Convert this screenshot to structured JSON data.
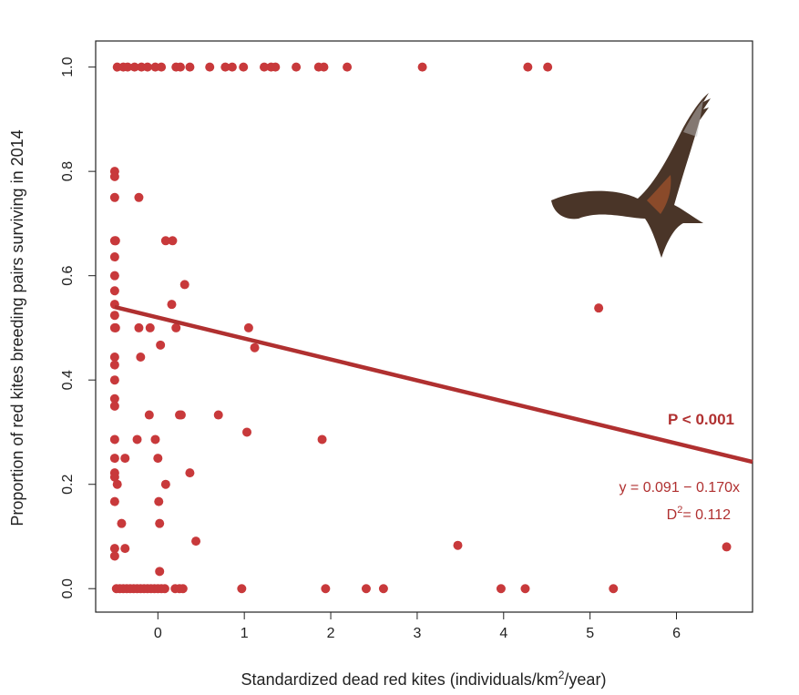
{
  "chart_data": {
    "type": "scatter",
    "title": "",
    "xlabel": "Standardized dead red kites (individuals/km²/year)",
    "xlabel_parts": [
      "Standardized dead red kites (individuals/km",
      "2",
      "/year)"
    ],
    "ylabel": "Proportion of red kites breeding pairs surviving in 2014",
    "xlim": [
      -0.72,
      6.88
    ],
    "ylim": [
      -0.045,
      1.05
    ],
    "xticks": [
      "0",
      "1",
      "2",
      "3",
      "4",
      "5",
      "6"
    ],
    "xtick_values": [
      0,
      1,
      2,
      3,
      4,
      5,
      6
    ],
    "yticks": [
      "0.0",
      "0.2",
      "0.4",
      "0.6",
      "0.8",
      "1.0"
    ],
    "ytick_values": [
      0,
      0.2,
      0.4,
      0.6,
      0.8,
      1.0
    ],
    "grid": false,
    "point_color": "#c8393b",
    "line_color": "#b03030",
    "fit_line": {
      "x": [
        -0.5,
        6.88
      ],
      "y": [
        0.54,
        0.243
      ]
    },
    "annotations": {
      "p_value": "P < 0.001",
      "equation": "y = 0.091 − 0.170x",
      "d2_label": "D",
      "d2_sup": "2",
      "d2_value": "= 0.112"
    },
    "points": [
      [
        -0.47,
        1
      ],
      [
        -0.4,
        1
      ],
      [
        -0.35,
        1
      ],
      [
        -0.27,
        1
      ],
      [
        -0.19,
        1
      ],
      [
        -0.12,
        1
      ],
      [
        -0.03,
        1
      ],
      [
        0.04,
        1
      ],
      [
        0.21,
        1
      ],
      [
        0.26,
        1
      ],
      [
        0.37,
        1
      ],
      [
        0.6,
        1
      ],
      [
        0.78,
        1
      ],
      [
        0.86,
        1
      ],
      [
        0.99,
        1
      ],
      [
        1.23,
        1
      ],
      [
        1.31,
        1
      ],
      [
        1.36,
        1
      ],
      [
        1.6,
        1
      ],
      [
        1.86,
        1
      ],
      [
        1.92,
        1
      ],
      [
        2.19,
        1
      ],
      [
        3.06,
        1
      ],
      [
        4.28,
        1
      ],
      [
        4.51,
        1
      ],
      [
        -0.5,
        0.8
      ],
      [
        -0.5,
        0.79
      ],
      [
        -0.5,
        0.75
      ],
      [
        -0.22,
        0.75
      ],
      [
        -0.5,
        0.667
      ],
      [
        -0.49,
        0.667
      ],
      [
        0.09,
        0.667
      ],
      [
        0.17,
        0.667
      ],
      [
        -0.5,
        0.636
      ],
      [
        -0.5,
        0.6
      ],
      [
        -0.5,
        0.571
      ],
      [
        0.31,
        0.583
      ],
      [
        -0.5,
        0.545
      ],
      [
        0.16,
        0.545
      ],
      [
        -0.5,
        0.524
      ],
      [
        -0.5,
        0.5
      ],
      [
        -0.49,
        0.5
      ],
      [
        -0.22,
        0.5
      ],
      [
        -0.09,
        0.5
      ],
      [
        0.21,
        0.5
      ],
      [
        1.05,
        0.5
      ],
      [
        0.03,
        0.467
      ],
      [
        1.12,
        0.462
      ],
      [
        -0.5,
        0.444
      ],
      [
        -0.2,
        0.444
      ],
      [
        -0.5,
        0.429
      ],
      [
        -0.5,
        0.4
      ],
      [
        -0.5,
        0.364
      ],
      [
        -0.5,
        0.35
      ],
      [
        -0.1,
        0.333
      ],
      [
        0.25,
        0.333
      ],
      [
        0.27,
        0.333
      ],
      [
        0.7,
        0.333
      ],
      [
        1.03,
        0.3
      ],
      [
        -0.5,
        0.286
      ],
      [
        -0.24,
        0.286
      ],
      [
        -0.03,
        0.286
      ],
      [
        1.9,
        0.286
      ],
      [
        -0.5,
        0.25
      ],
      [
        -0.38,
        0.25
      ],
      [
        0,
        0.25
      ],
      [
        -0.5,
        0.222
      ],
      [
        -0.5,
        0.214
      ],
      [
        0.37,
        0.222
      ],
      [
        -0.47,
        0.2
      ],
      [
        0.09,
        0.2
      ],
      [
        -0.5,
        0.167
      ],
      [
        0.01,
        0.167
      ],
      [
        -0.42,
        0.125
      ],
      [
        0.02,
        0.125
      ],
      [
        0.44,
        0.091
      ],
      [
        3.47,
        0.083
      ],
      [
        6.58,
        0.08
      ],
      [
        -0.5,
        0.077
      ],
      [
        -0.38,
        0.077
      ],
      [
        -0.5,
        0.0625
      ],
      [
        0.02,
        0.033
      ],
      [
        5.1,
        0.538
      ],
      [
        -0.48,
        0
      ],
      [
        -0.44,
        0
      ],
      [
        -0.4,
        0
      ],
      [
        -0.36,
        0
      ],
      [
        -0.32,
        0
      ],
      [
        -0.28,
        0
      ],
      [
        -0.24,
        0
      ],
      [
        -0.2,
        0
      ],
      [
        -0.16,
        0
      ],
      [
        -0.12,
        0
      ],
      [
        -0.08,
        0
      ],
      [
        -0.04,
        0
      ],
      [
        0,
        0
      ],
      [
        0.04,
        0
      ],
      [
        0.08,
        0
      ],
      [
        0.2,
        0
      ],
      [
        0.25,
        0
      ],
      [
        0.29,
        0
      ],
      [
        0.97,
        0
      ],
      [
        1.94,
        0
      ],
      [
        2.41,
        0
      ],
      [
        2.61,
        0
      ],
      [
        3.97,
        0
      ],
      [
        4.25,
        0
      ],
      [
        5.27,
        0
      ]
    ]
  }
}
